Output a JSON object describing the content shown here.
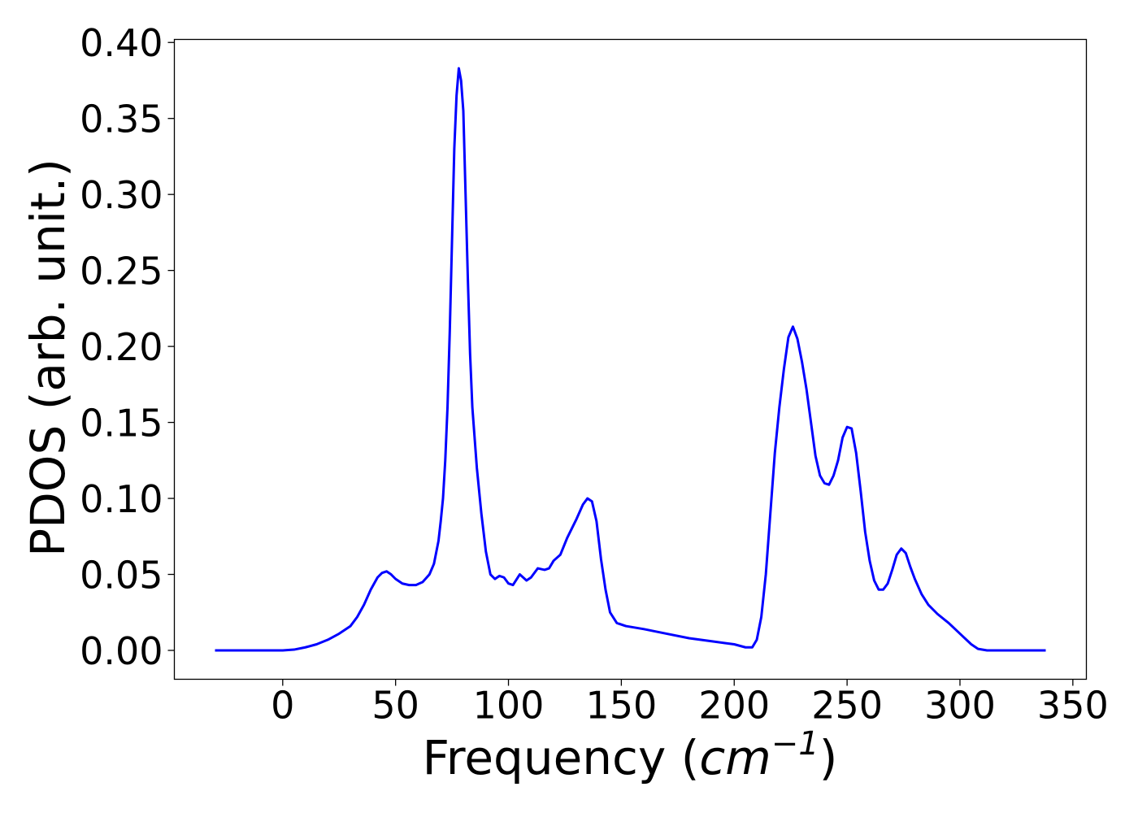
{
  "chart_data": {
    "type": "line",
    "title": "",
    "xlabel": "Frequency",
    "xlabel_unit_base": "cm",
    "xlabel_unit_exponent": "−1",
    "ylabel": "PDOS (arb. unit.)",
    "xlim": [
      -48,
      356
    ],
    "ylim": [
      -0.019,
      0.402
    ],
    "xticks": [
      0,
      50,
      100,
      150,
      200,
      250,
      300,
      350
    ],
    "yticks": [
      0.0,
      0.05,
      0.1,
      0.15,
      0.2,
      0.25,
      0.3,
      0.35,
      0.4
    ],
    "ytick_labels": [
      "0.00",
      "0.05",
      "0.10",
      "0.15",
      "0.20",
      "0.25",
      "0.30",
      "0.35",
      "0.40"
    ],
    "grid": false,
    "legend": null,
    "series": [
      {
        "color": "#0000ff",
        "x": [
          -30,
          0,
          5,
          10,
          15,
          20,
          25,
          30,
          33,
          36,
          39,
          42,
          44,
          46,
          48,
          50,
          53,
          56,
          59,
          62,
          65,
          67,
          69,
          70,
          71,
          72,
          73,
          74,
          75,
          76,
          77,
          78,
          79,
          80,
          81,
          82,
          83,
          84,
          85,
          86,
          88,
          90,
          92,
          94,
          96,
          98,
          100,
          102,
          105,
          108,
          110,
          113,
          116,
          118,
          120,
          123,
          126,
          128,
          130,
          133,
          135,
          137,
          139,
          141,
          143,
          145,
          148,
          152,
          160,
          170,
          180,
          190,
          200,
          205,
          208,
          210,
          212,
          214,
          216,
          218,
          220,
          222,
          224,
          226,
          228,
          230,
          232,
          234,
          236,
          238,
          240,
          242,
          244,
          246,
          248,
          250,
          252,
          254,
          256,
          258,
          260,
          262,
          264,
          266,
          268,
          270,
          272,
          274,
          276,
          278,
          280,
          283,
          286,
          290,
          295,
          300,
          305,
          308,
          312,
          338
        ],
        "y": [
          0.0,
          0.0,
          0.0005,
          0.002,
          0.004,
          0.007,
          0.011,
          0.016,
          0.022,
          0.03,
          0.04,
          0.048,
          0.051,
          0.052,
          0.05,
          0.047,
          0.044,
          0.043,
          0.043,
          0.045,
          0.05,
          0.057,
          0.072,
          0.085,
          0.1,
          0.125,
          0.16,
          0.21,
          0.27,
          0.33,
          0.365,
          0.383,
          0.375,
          0.355,
          0.3,
          0.245,
          0.195,
          0.16,
          0.14,
          0.12,
          0.09,
          0.065,
          0.05,
          0.047,
          0.049,
          0.048,
          0.044,
          0.043,
          0.05,
          0.046,
          0.048,
          0.054,
          0.053,
          0.054,
          0.059,
          0.063,
          0.074,
          0.08,
          0.086,
          0.096,
          0.1,
          0.098,
          0.085,
          0.06,
          0.04,
          0.025,
          0.018,
          0.016,
          0.014,
          0.011,
          0.008,
          0.006,
          0.004,
          0.002,
          0.002,
          0.007,
          0.022,
          0.05,
          0.09,
          0.13,
          0.16,
          0.185,
          0.206,
          0.213,
          0.205,
          0.19,
          0.172,
          0.15,
          0.128,
          0.115,
          0.11,
          0.109,
          0.115,
          0.125,
          0.14,
          0.147,
          0.146,
          0.13,
          0.105,
          0.078,
          0.059,
          0.046,
          0.04,
          0.04,
          0.044,
          0.053,
          0.063,
          0.067,
          0.064,
          0.055,
          0.047,
          0.037,
          0.03,
          0.024,
          0.018,
          0.011,
          0.004,
          0.001,
          0.0,
          0.0
        ]
      }
    ]
  }
}
